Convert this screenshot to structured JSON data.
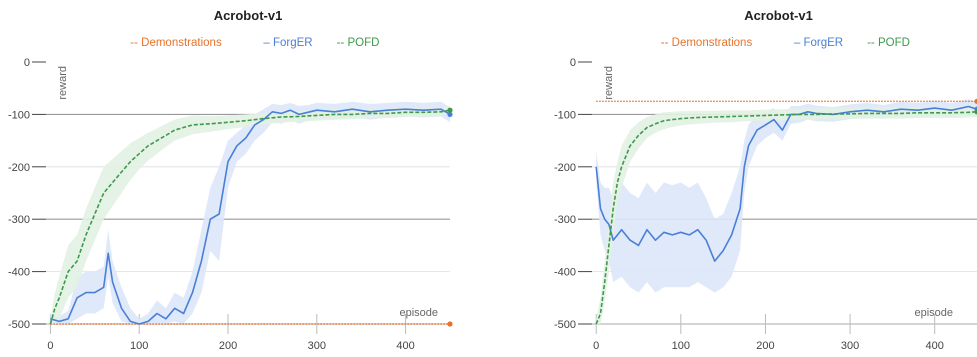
{
  "chart_data": [
    {
      "type": "line",
      "title": "Acrobot-v1",
      "xlabel": "episode",
      "ylabel": "reward",
      "xlim": [
        -5,
        450
      ],
      "ylim": [
        -500,
        0
      ],
      "xticks": [
        0,
        100,
        200,
        300,
        400
      ],
      "yticks": [
        0,
        -100,
        -200,
        -300,
        -400,
        -500
      ],
      "grid": true,
      "legend_position": "top-center",
      "series": [
        {
          "name": "Demonstrations",
          "color": "#e8732a",
          "style": "dotted",
          "x": [
            0,
            450
          ],
          "y": [
            -500,
            -500
          ]
        },
        {
          "name": "ForgER",
          "color": "#4a7fd8",
          "style": "solid",
          "x": [
            0,
            10,
            20,
            30,
            40,
            50,
            60,
            65,
            70,
            80,
            90,
            100,
            110,
            120,
            130,
            140,
            150,
            160,
            170,
            180,
            190,
            200,
            210,
            220,
            230,
            240,
            250,
            260,
            270,
            280,
            290,
            300,
            320,
            340,
            360,
            380,
            400,
            420,
            440,
            450
          ],
          "y": [
            -490,
            -495,
            -490,
            -450,
            -440,
            -440,
            -430,
            -365,
            -420,
            -470,
            -495,
            -500,
            -495,
            -480,
            -490,
            -470,
            -480,
            -440,
            -380,
            -300,
            -290,
            -190,
            -160,
            -145,
            -120,
            -110,
            -95,
            -98,
            -92,
            -100,
            -96,
            -92,
            -95,
            -90,
            -95,
            -92,
            -90,
            -92,
            -90,
            -100
          ],
          "band_lower": [
            -500,
            -500,
            -500,
            -490,
            -480,
            -480,
            -470,
            -410,
            -460,
            -495,
            -500,
            -500,
            -500,
            -500,
            -500,
            -495,
            -500,
            -480,
            -440,
            -360,
            -380,
            -240,
            -190,
            -175,
            -150,
            -135,
            -115,
            -118,
            -110,
            -118,
            -112,
            -108,
            -110,
            -106,
            -110,
            -106,
            -104,
            -106,
            -104,
            -115
          ],
          "band_upper": [
            -480,
            -485,
            -475,
            -410,
            -400,
            -400,
            -390,
            -320,
            -380,
            -430,
            -470,
            -490,
            -480,
            -455,
            -470,
            -440,
            -450,
            -400,
            -320,
            -240,
            -200,
            -150,
            -135,
            -120,
            -100,
            -90,
            -80,
            -82,
            -78,
            -84,
            -82,
            -78,
            -80,
            -76,
            -80,
            -78,
            -76,
            -78,
            -76,
            -86
          ]
        },
        {
          "name": "POFD",
          "color": "#3c9a4a",
          "style": "dashed",
          "x": [
            0,
            5,
            10,
            20,
            30,
            40,
            50,
            60,
            70,
            80,
            90,
            100,
            110,
            120,
            130,
            140,
            160,
            180,
            200,
            220,
            240,
            260,
            280,
            300,
            320,
            340,
            360,
            380,
            400,
            420,
            440,
            450
          ],
          "y": [
            -500,
            -470,
            -450,
            -400,
            -380,
            -330,
            -290,
            -250,
            -230,
            -210,
            -190,
            -175,
            -160,
            -150,
            -140,
            -130,
            -120,
            -118,
            -115,
            -112,
            -108,
            -105,
            -104,
            -102,
            -100,
            -100,
            -98,
            -98,
            -96,
            -96,
            -95,
            -92
          ],
          "band_lower": [
            -500,
            -500,
            -490,
            -450,
            -430,
            -380,
            -340,
            -300,
            -275,
            -250,
            -225,
            -205,
            -188,
            -175,
            -162,
            -150,
            -138,
            -133,
            -128,
            -124,
            -119,
            -116,
            -114,
            -112,
            -110,
            -109,
            -107,
            -107,
            -105,
            -104,
            -103,
            -100
          ],
          "band_upper": [
            -490,
            -440,
            -410,
            -350,
            -330,
            -280,
            -240,
            -200,
            -185,
            -170,
            -155,
            -145,
            -135,
            -127,
            -118,
            -110,
            -102,
            -103,
            -102,
            -100,
            -97,
            -94,
            -94,
            -92,
            -90,
            -91,
            -89,
            -89,
            -87,
            -88,
            -87,
            -84
          ]
        }
      ]
    },
    {
      "type": "line",
      "title": "Acrobot-v1",
      "xlabel": "episode",
      "ylabel": "reward",
      "xlim": [
        -5,
        450
      ],
      "ylim": [
        -500,
        0
      ],
      "xticks": [
        0,
        100,
        200,
        300,
        400
      ],
      "yticks": [
        0,
        -100,
        -200,
        -300,
        -400,
        -500
      ],
      "grid": true,
      "legend_position": "top-center",
      "series": [
        {
          "name": "Demonstrations",
          "color": "#e8732a",
          "style": "dotted",
          "x": [
            0,
            450
          ],
          "y": [
            -75,
            -75
          ]
        },
        {
          "name": "ForgER",
          "color": "#4a7fd8",
          "style": "solid",
          "x": [
            0,
            5,
            10,
            15,
            20,
            30,
            40,
            50,
            60,
            70,
            80,
            90,
            100,
            110,
            120,
            130,
            140,
            150,
            160,
            170,
            175,
            180,
            190,
            200,
            210,
            220,
            230,
            240,
            250,
            260,
            280,
            300,
            320,
            340,
            360,
            380,
            400,
            420,
            440,
            450
          ],
          "y": [
            -200,
            -280,
            -300,
            -310,
            -340,
            -320,
            -340,
            -350,
            -320,
            -340,
            -325,
            -330,
            -325,
            -330,
            -320,
            -340,
            -380,
            -360,
            -330,
            -280,
            -200,
            -160,
            -130,
            -120,
            -110,
            -130,
            -100,
            -100,
            -95,
            -98,
            -100,
            -95,
            -92,
            -95,
            -90,
            -92,
            -88,
            -92,
            -85,
            -90
          ],
          "band_lower": [
            -230,
            -330,
            -360,
            -380,
            -420,
            -410,
            -430,
            -440,
            -420,
            -440,
            -430,
            -430,
            -430,
            -430,
            -420,
            -430,
            -440,
            -430,
            -410,
            -360,
            -250,
            -200,
            -160,
            -145,
            -135,
            -150,
            -118,
            -116,
            -110,
            -113,
            -114,
            -109,
            -106,
            -108,
            -104,
            -106,
            -102,
            -106,
            -99,
            -104
          ],
          "band_upper": [
            -170,
            -230,
            -240,
            -240,
            -260,
            -230,
            -250,
            -260,
            -230,
            -250,
            -230,
            -235,
            -230,
            -240,
            -230,
            -260,
            -300,
            -290,
            -250,
            -200,
            -150,
            -120,
            -100,
            -95,
            -88,
            -110,
            -84,
            -84,
            -80,
            -83,
            -86,
            -81,
            -78,
            -82,
            -76,
            -78,
            -74,
            -78,
            -71,
            -76
          ]
        },
        {
          "name": "POFD",
          "color": "#3c9a4a",
          "style": "dashed",
          "x": [
            0,
            5,
            10,
            15,
            20,
            25,
            30,
            40,
            50,
            60,
            70,
            80,
            90,
            100,
            120,
            140,
            160,
            180,
            200,
            220,
            240,
            260,
            280,
            300,
            320,
            340,
            360,
            380,
            400,
            420,
            440,
            450
          ],
          "y": [
            -500,
            -480,
            -420,
            -350,
            -280,
            -230,
            -200,
            -160,
            -140,
            -125,
            -118,
            -112,
            -110,
            -108,
            -106,
            -105,
            -104,
            -103,
            -102,
            -101,
            -100,
            -100,
            -99,
            -99,
            -98,
            -98,
            -98,
            -97,
            -97,
            -97,
            -96,
            -95
          ],
          "band_lower": [
            -500,
            -500,
            -460,
            -400,
            -330,
            -270,
            -240,
            -190,
            -165,
            -145,
            -135,
            -128,
            -124,
            -121,
            -118,
            -116,
            -115,
            -113,
            -112,
            -111,
            -110,
            -110,
            -109,
            -109,
            -108,
            -108,
            -108,
            -107,
            -107,
            -107,
            -106,
            -105
          ],
          "band_upper": [
            -490,
            -450,
            -380,
            -300,
            -230,
            -190,
            -160,
            -130,
            -115,
            -105,
            -100,
            -96,
            -95,
            -94,
            -93,
            -93,
            -92,
            -92,
            -91,
            -90,
            -89,
            -89,
            -88,
            -88,
            -87,
            -87,
            -87,
            -86,
            -86,
            -86,
            -85,
            -84
          ]
        }
      ]
    }
  ]
}
